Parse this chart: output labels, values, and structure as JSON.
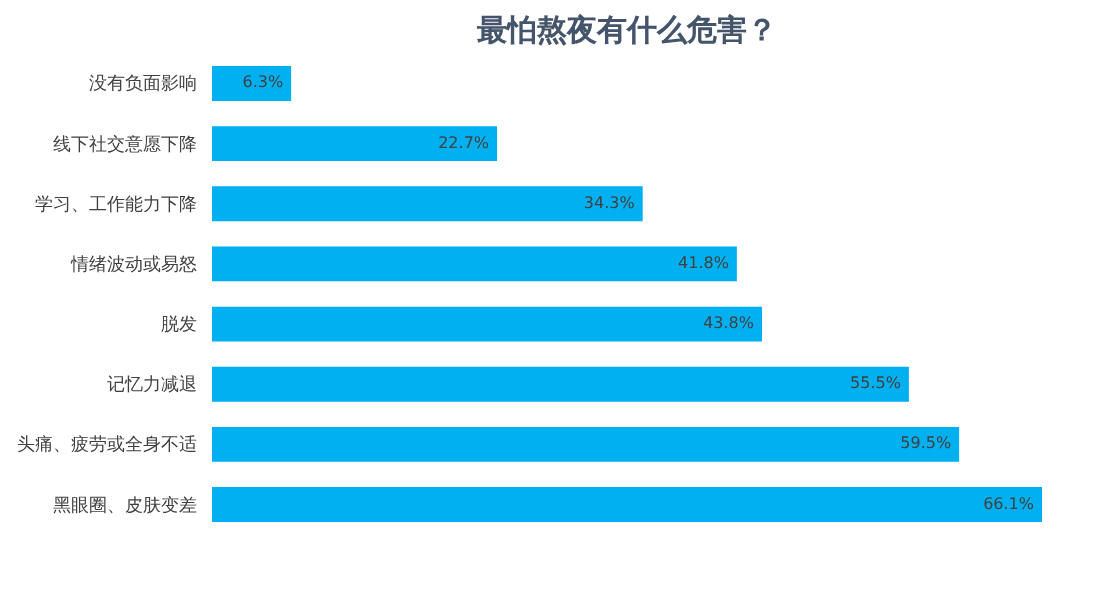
{
  "chart_data": {
    "type": "bar",
    "orientation": "horizontal",
    "title": "最怕熬夜有什么危害？",
    "categories": [
      "没有负面影响",
      "线下社交意愿下降",
      "学习、工作能力下降",
      "情绪波动或易怒",
      "脱发",
      "记忆力减退",
      "头痛、疲劳或全身不适",
      "黑眼圈、皮肤变差"
    ],
    "values": [
      6.3,
      22.7,
      34.3,
      41.8,
      43.8,
      55.5,
      59.5,
      66.1
    ],
    "value_labels": [
      "6.3%",
      "22.7%",
      "34.3%",
      "41.8%",
      "43.8%",
      "55.5%",
      "59.5%",
      "66.1%"
    ],
    "color": "#00b0f0",
    "grid": false
  }
}
